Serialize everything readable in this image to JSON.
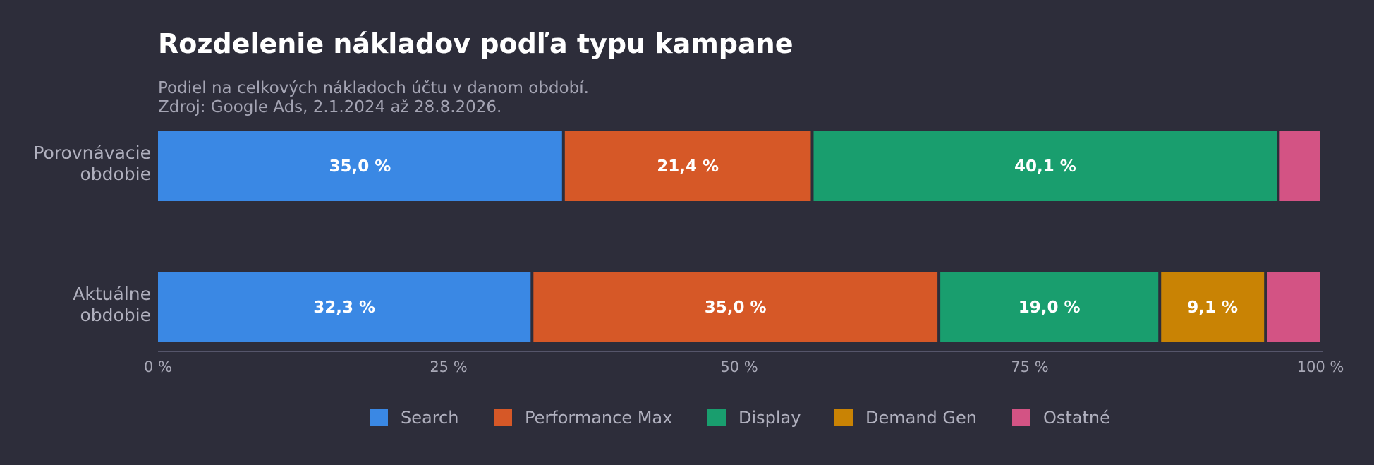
{
  "chart_data": {
    "type": "bar",
    "orientation": "horizontal",
    "stacked": true,
    "normalized": true,
    "title": "Rozdelenie nákladov podľa typu kampane",
    "subtitle_lines": [
      "Podiel na celkových nákladoch účtu v danom období.",
      "Zdroj: Google Ads, 2.1.2024 až 28.8.2026."
    ],
    "categories": [
      [
        "Porovnávacie",
        "obdobie"
      ],
      [
        "Aktuálne",
        "obdobie"
      ]
    ],
    "series": [
      {
        "name": "Search",
        "color": "#3a88e4",
        "values": [
          35.0,
          32.3
        ],
        "labels": [
          "35,0 %",
          "32,3 %"
        ]
      },
      {
        "name": "Performance Max",
        "color": "#d65827",
        "values": [
          21.4,
          35.0
        ],
        "labels": [
          "21,4 %",
          "35,0 %"
        ]
      },
      {
        "name": "Display",
        "color": "#199e6e",
        "values": [
          40.1,
          19.0
        ],
        "labels": [
          "40,1 %",
          "19,0 %"
        ]
      },
      {
        "name": "Demand Gen",
        "color": "#c98304",
        "values": [
          0.0,
          9.1
        ],
        "labels": [
          "",
          "9,1 %"
        ]
      },
      {
        "name": "Ostatné",
        "color": "#d35384",
        "values": [
          3.5,
          4.6
        ],
        "labels": [
          "",
          ""
        ]
      }
    ],
    "xlim": [
      0,
      100
    ],
    "xticks": [
      0,
      25,
      50,
      75,
      100
    ],
    "xtick_labels": [
      "0 %",
      "25 %",
      "50 %",
      "75 %",
      "100 %"
    ],
    "legend_position": "bottom-center",
    "grid": false
  }
}
